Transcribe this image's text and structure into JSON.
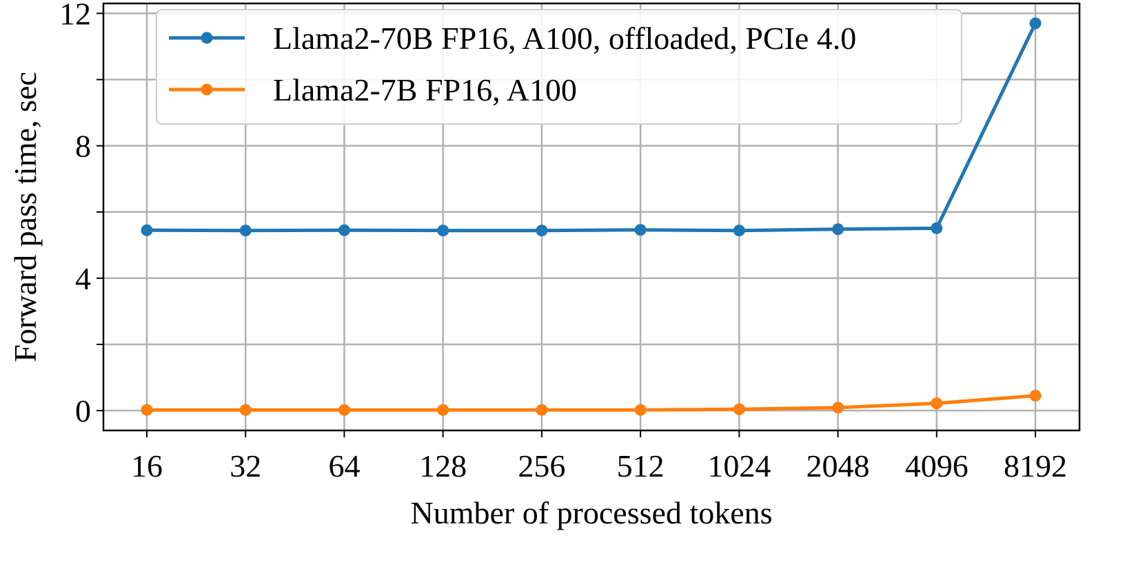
{
  "chart_data": {
    "type": "line",
    "title": "",
    "xlabel": "Number of processed tokens",
    "ylabel": "Forward pass time, sec",
    "categories": [
      "16",
      "32",
      "64",
      "128",
      "256",
      "512",
      "1024",
      "2048",
      "4096",
      "8192"
    ],
    "x_scale": "log2",
    "yticks": [
      0,
      2,
      4,
      6,
      8,
      10,
      12
    ],
    "ytick_labels": [
      "0",
      "",
      "4",
      "",
      "8",
      "",
      "12"
    ],
    "ylim": [
      -0.6,
      12.3
    ],
    "grid": true,
    "legend_position": "top-left",
    "series": [
      {
        "name": "Llama2-70B FP16, A100, offloaded, PCIe 4.0",
        "color": "#1f77b4",
        "values": [
          5.45,
          5.44,
          5.45,
          5.44,
          5.44,
          5.46,
          5.44,
          5.48,
          5.51,
          11.7
        ]
      },
      {
        "name": "Llama2-7B FP16, A100",
        "color": "#ff7f0e",
        "values": [
          0.02,
          0.02,
          0.02,
          0.02,
          0.02,
          0.02,
          0.04,
          0.09,
          0.22,
          0.45
        ]
      }
    ]
  }
}
